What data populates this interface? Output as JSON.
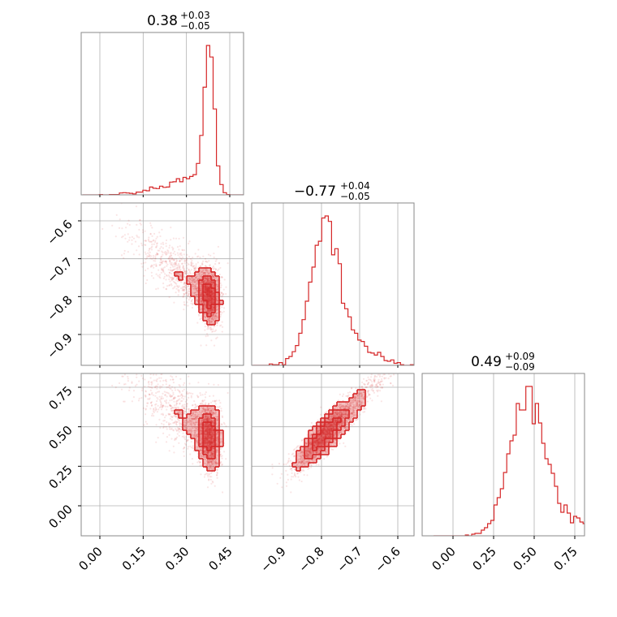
{
  "figure": {
    "panels": [
      {
        "id": "p00",
        "row": 0,
        "col": 0,
        "title": {
          "main": "0.38",
          "sup": "+0.03",
          "sub": "−0.05"
        }
      },
      {
        "id": "p11",
        "row": 1,
        "col": 1,
        "title": {
          "main": "−0.77",
          "sup": "+0.04",
          "sub": "−0.05"
        }
      },
      {
        "id": "p22",
        "row": 2,
        "col": 2,
        "title": {
          "main": "0.49",
          "sup": "+0.09",
          "sub": "−0.09"
        }
      },
      {
        "id": "p10",
        "row": 1,
        "col": 0
      },
      {
        "id": "p20",
        "row": 2,
        "col": 0
      },
      {
        "id": "p21",
        "row": 2,
        "col": 1
      }
    ],
    "xticks": {
      "col0": {
        "values": [
          0.0,
          0.15,
          0.3,
          0.45
        ],
        "labels": [
          "0.00",
          "0.15",
          "0.30",
          "0.45"
        ]
      },
      "col1": {
        "values": [
          -0.9,
          -0.8,
          -0.7,
          -0.6
        ],
        "labels": [
          "−0.9",
          "−0.8",
          "−0.7",
          "−0.6"
        ]
      },
      "col2": {
        "values": [
          0.0,
          0.25,
          0.5,
          0.75
        ],
        "labels": [
          "0.00",
          "0.25",
          "0.50",
          "0.75"
        ]
      }
    },
    "yticks": {
      "row1": {
        "values": [
          -0.6,
          -0.7,
          -0.8,
          -0.9
        ],
        "labels": [
          "−0.6",
          "−0.7",
          "−0.8",
          "−0.9"
        ]
      },
      "row2": {
        "values": [
          0.75,
          0.5,
          0.25,
          0.0
        ],
        "labels": [
          "0.75",
          "0.50",
          "0.25",
          "0.00"
        ]
      }
    }
  },
  "chart_data": [
    {
      "type": "histogram",
      "panel": "p00",
      "param_index": 0,
      "range": [
        -0.05,
        0.5
      ],
      "median": 0.38,
      "err_plus": 0.03,
      "err_minus": 0.05,
      "peak": 0.375,
      "shape": "left-skewed",
      "color": "#d62728"
    },
    {
      "type": "histogram",
      "panel": "p11",
      "param_index": 1,
      "range": [
        -0.97,
        -0.55
      ],
      "median": -0.77,
      "err_plus": 0.04,
      "err_minus": 0.05,
      "peak": -0.76,
      "shape": "roughly symmetric",
      "color": "#d62728"
    },
    {
      "type": "histogram",
      "panel": "p22",
      "param_index": 2,
      "range": [
        -0.1,
        0.85
      ],
      "median": 0.49,
      "err_plus": 0.09,
      "err_minus": 0.09,
      "peak": 0.49,
      "shape": "symmetric",
      "color": "#d62728"
    },
    {
      "type": "scatter_density",
      "panel": "p10",
      "x_param": 0,
      "y_param": 1,
      "xlim": [
        -0.05,
        0.5
      ],
      "ylim": [
        -0.98,
        -0.56
      ],
      "mode": [
        0.38,
        -0.8
      ],
      "trend": "curved arm toward upper-left",
      "color": "#d62728"
    },
    {
      "type": "scatter_density",
      "panel": "p20",
      "x_param": 0,
      "y_param": 2,
      "xlim": [
        -0.05,
        0.5
      ],
      "ylim": [
        -0.15,
        0.85
      ],
      "mode": [
        0.38,
        0.5
      ],
      "trend": "curved arm toward upper-left",
      "color": "#d62728"
    },
    {
      "type": "scatter_density",
      "panel": "p21",
      "x_param": 1,
      "y_param": 2,
      "xlim": [
        -0.97,
        -0.55
      ],
      "ylim": [
        -0.15,
        0.85
      ],
      "mode": [
        -0.77,
        0.49
      ],
      "trend": "positive linear correlation",
      "color": "#d62728"
    }
  ]
}
